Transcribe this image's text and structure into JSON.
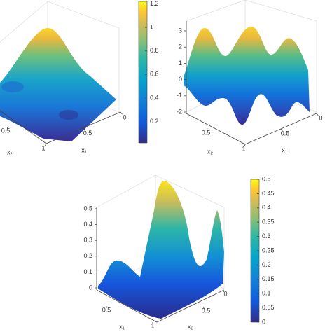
{
  "chart_data": [
    {
      "type": "surface",
      "xlabel": "x₁",
      "ylabel": "x₂",
      "xlim": [
        0,
        1
      ],
      "ylim": [
        0,
        1
      ],
      "xticks": [
        0,
        0.5
      ],
      "yticks": [
        0.5,
        1
      ],
      "clim": [
        0.02,
        1.22
      ],
      "cticks": [
        0.2,
        0.4,
        0.6,
        0.8,
        1,
        1.2
      ]
    },
    {
      "type": "surface",
      "xlabel": "x₁",
      "ylabel": "x₂",
      "xlim": [
        0,
        1
      ],
      "ylim": [
        0,
        1
      ],
      "xticks": [
        0,
        0.5
      ],
      "yticks": [
        0.5,
        1
      ],
      "zlim": [
        -2,
        3
      ],
      "zticks": [
        -2,
        -1,
        0,
        1,
        2,
        3
      ]
    },
    {
      "type": "surface",
      "xlabel": "x₁",
      "ylabel": "x₂",
      "xlim": [
        0,
        1
      ],
      "ylim": [
        0,
        1
      ],
      "xticks": [
        0.5,
        1
      ],
      "yticks": [
        0,
        0.5
      ],
      "zlim": [
        0,
        0.5
      ],
      "zticks": [
        0,
        0.1,
        0.2,
        0.3,
        0.4,
        0.5
      ],
      "clim": [
        0,
        0.5
      ],
      "cticks": [
        0,
        0.05,
        0.1,
        0.15,
        0.2,
        0.25,
        0.3,
        0.35,
        0.4,
        0.45,
        0.5
      ]
    }
  ]
}
